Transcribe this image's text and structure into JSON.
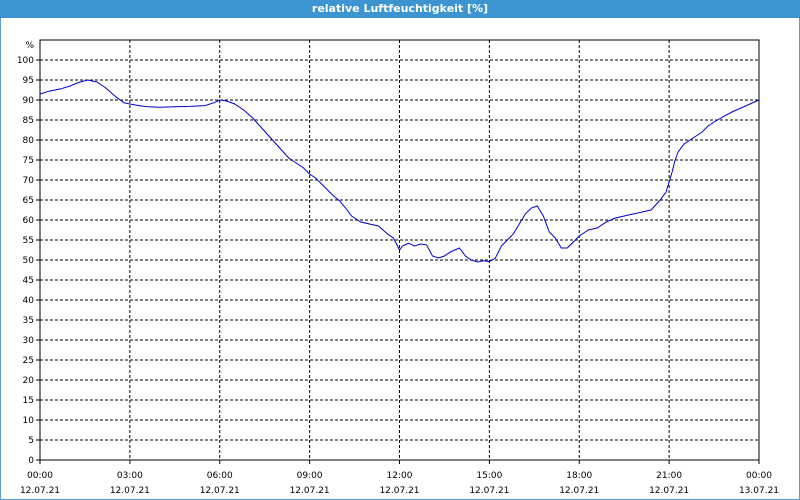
{
  "window": {
    "title": "relative Luftfeuchtigkeit [%]"
  },
  "chart_data": {
    "type": "line",
    "title": "relative Luftfeuchtigkeit [%]",
    "xlabel": "",
    "ylabel": "%",
    "ylim": [
      0,
      100
    ],
    "yticks": [
      0,
      5,
      10,
      15,
      20,
      25,
      30,
      35,
      40,
      45,
      50,
      55,
      60,
      65,
      70,
      75,
      80,
      85,
      90,
      95,
      100
    ],
    "xlim": [
      0,
      24
    ],
    "xticks": [
      {
        "x": 0,
        "time": "00:00",
        "date": "12.07.21"
      },
      {
        "x": 3,
        "time": "03:00",
        "date": "12.07.21"
      },
      {
        "x": 6,
        "time": "06:00",
        "date": "12.07.21"
      },
      {
        "x": 9,
        "time": "09:00",
        "date": "12.07.21"
      },
      {
        "x": 12,
        "time": "12:00",
        "date": "12.07.21"
      },
      {
        "x": 15,
        "time": "15:00",
        "date": "12.07.21"
      },
      {
        "x": 18,
        "time": "18:00",
        "date": "12.07.21"
      },
      {
        "x": 21,
        "time": "21:00",
        "date": "12.07.21"
      },
      {
        "x": 24,
        "time": "00:00",
        "date": "13.07.21"
      }
    ],
    "grid": true,
    "series": [
      {
        "color": "#0000cc",
        "x": [
          0,
          0.3,
          0.7,
          1.0,
          1.3,
          1.6,
          1.9,
          2.2,
          2.5,
          2.8,
          3.0,
          3.3,
          3.6,
          4.0,
          4.5,
          5.0,
          5.5,
          5.8,
          6.0,
          6.2,
          6.5,
          6.8,
          7.1,
          7.4,
          7.7,
          8.0,
          8.3,
          8.6,
          8.8,
          9.0,
          9.2,
          9.4,
          9.6,
          9.8,
          10.0,
          10.2,
          10.4,
          10.7,
          11.0,
          11.3,
          11.6,
          11.8,
          12.0,
          12.1,
          12.3,
          12.5,
          12.7,
          12.9,
          13.1,
          13.3,
          13.5,
          13.7,
          14.0,
          14.2,
          14.4,
          14.6,
          14.8,
          15.0,
          15.2,
          15.4,
          15.6,
          15.8,
          16.0,
          16.2,
          16.4,
          16.6,
          16.8,
          17.0,
          17.2,
          17.4,
          17.6,
          17.8,
          18.0,
          18.3,
          18.6,
          18.9,
          19.2,
          19.5,
          19.8,
          20.1,
          20.4,
          20.7,
          20.9,
          21.0,
          21.1,
          21.2,
          21.3,
          21.5,
          21.7,
          21.9,
          22.1,
          22.3,
          22.5,
          22.8,
          23.1,
          23.4,
          23.7,
          24.0
        ],
        "y": [
          91.5,
          92.2,
          92.8,
          93.5,
          94.4,
          95.0,
          94.5,
          93.0,
          91.0,
          89.3,
          89.0,
          88.6,
          88.3,
          88.2,
          88.3,
          88.4,
          88.6,
          89.3,
          90.0,
          89.8,
          89.0,
          87.5,
          85.5,
          83.0,
          80.5,
          78.0,
          75.5,
          74.0,
          73.0,
          71.5,
          70.5,
          69.0,
          67.5,
          66.0,
          64.8,
          63.0,
          61.0,
          59.5,
          59.0,
          58.5,
          56.5,
          55.5,
          52.5,
          53.5,
          54.2,
          53.5,
          54.0,
          53.8,
          51.0,
          50.5,
          51.0,
          52.0,
          53.0,
          51.0,
          50.0,
          49.5,
          49.8,
          49.6,
          50.5,
          53.5,
          55.0,
          56.5,
          59.0,
          61.5,
          63.0,
          63.5,
          61.0,
          57.0,
          55.5,
          53.0,
          53.0,
          54.5,
          56.0,
          57.5,
          58.0,
          59.5,
          60.5,
          61.0,
          61.5,
          62.0,
          62.5,
          65.0,
          67.0,
          69.5,
          72.0,
          75.0,
          77.0,
          79.0,
          80.0,
          81.0,
          82.0,
          83.5,
          84.5,
          85.8,
          87.0,
          88.0,
          89.0,
          90.0
        ]
      }
    ]
  }
}
